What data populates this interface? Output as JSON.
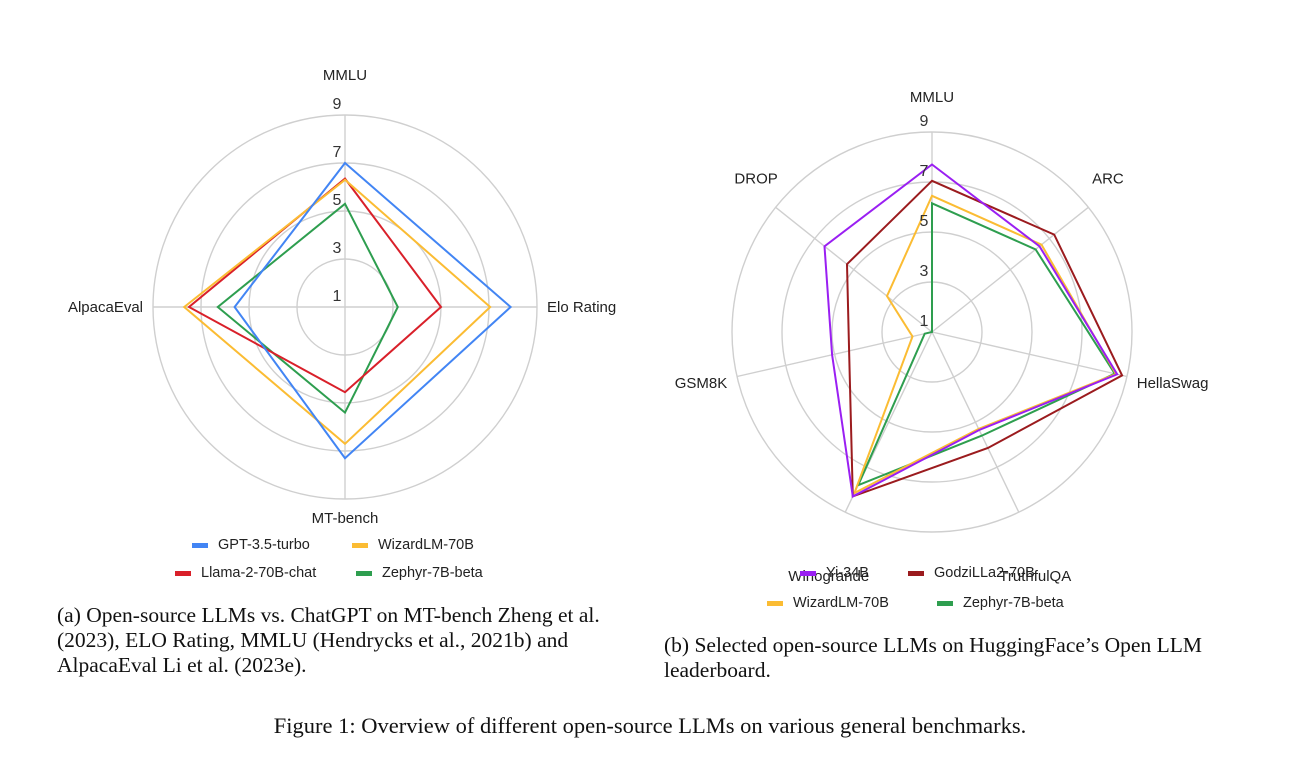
{
  "figure_caption": "Figure 1: Overview of different open-source LLMs on various general benchmarks.",
  "chart_data": [
    {
      "id": "a",
      "type": "radar",
      "caption": "(a) Open-source LLMs vs.  ChatGPT on MT-bench Zheng et al. (2023), ELO Rating, MMLU (Hendrycks et al., 2021b) and AlpacaEval Li et al. (2023e).",
      "axes": [
        "MMLU",
        "Elo Rating",
        "MT-bench",
        "AlpacaEval"
      ],
      "rlim": [
        1,
        9
      ],
      "ticks": [
        1,
        3,
        5,
        7,
        9
      ],
      "grid": true,
      "legend_position": "bottom",
      "series": [
        {
          "name": "GPT-3.5-turbo",
          "color": "#4285f4",
          "values": [
            7.0,
            7.9,
            7.3,
            5.6
          ]
        },
        {
          "name": "WizardLM-70B",
          "color": "#fbbc33",
          "values": [
            6.3,
            7.05,
            6.7,
            7.7
          ]
        },
        {
          "name": "Llama-2-70B-chat",
          "color": "#d9202a",
          "values": [
            6.35,
            5.0,
            4.55,
            7.5
          ]
        },
        {
          "name": "Zephyr-7B-beta",
          "color": "#2e9e4f",
          "values": [
            5.3,
            3.2,
            5.4,
            6.3
          ]
        }
      ]
    },
    {
      "id": "b",
      "type": "radar",
      "caption": "(b) Selected open-source LLMs on HuggingFace’s Open LLM leaderboard.",
      "axes": [
        "MMLU",
        "ARC",
        "HellaSwag",
        "TruthfulQA",
        "Winogrande",
        "GSM8K",
        "DROP"
      ],
      "rlim": [
        1,
        9
      ],
      "ticks": [
        1,
        3,
        5,
        7,
        9
      ],
      "grid": true,
      "legend_position": "bottom",
      "series": [
        {
          "name": "Yi-34B",
          "color": "#9a1ff2",
          "values": [
            7.7,
            6.5,
            8.6,
            5.35,
            8.3,
            5.1,
            6.5
          ]
        },
        {
          "name": "GodziLLa2-70B",
          "color": "#9b1b1e",
          "values": [
            7.05,
            7.25,
            8.8,
            6.15,
            8.3,
            4.4,
            5.35
          ]
        },
        {
          "name": "WizardLM-70B",
          "color": "#fbbc33",
          "values": [
            6.45,
            6.6,
            8.55,
            5.3,
            8.15,
            1.8,
            3.3
          ]
        },
        {
          "name": "Zephyr-7B-beta",
          "color": "#2e9e4f",
          "values": [
            6.15,
            6.3,
            8.5,
            5.6,
            7.8,
            1.3,
            1.0
          ]
        }
      ]
    }
  ]
}
